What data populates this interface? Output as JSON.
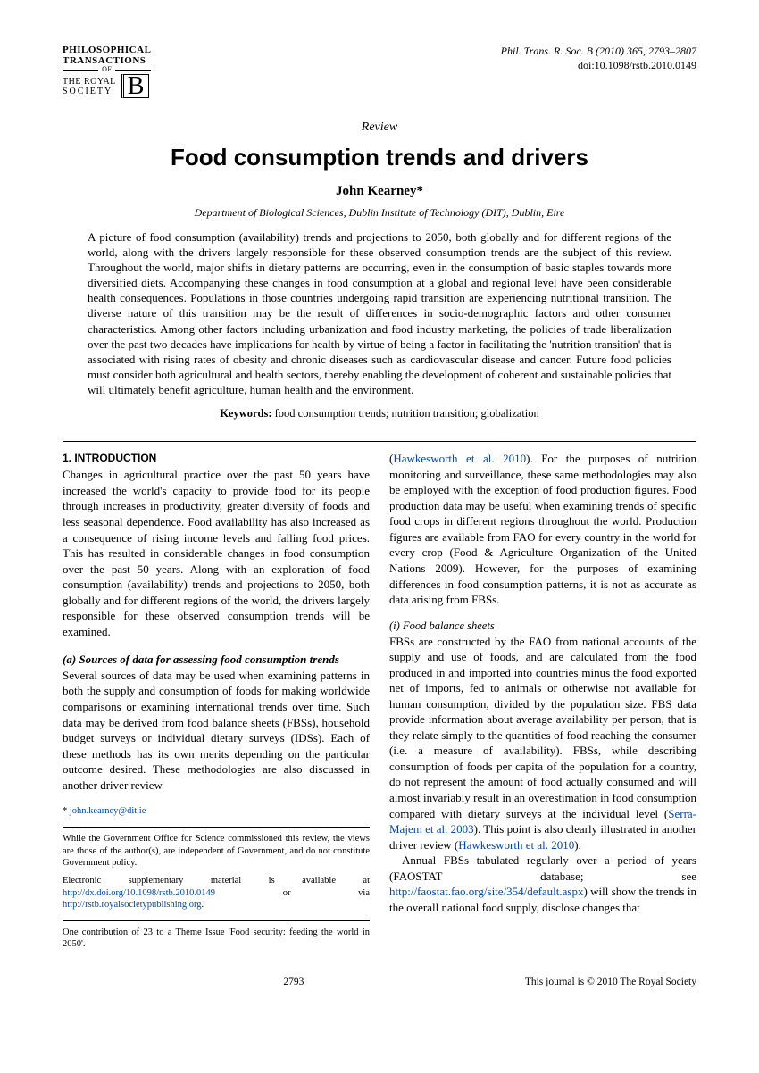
{
  "header": {
    "logo": {
      "line1": "PHILOSOPHICAL",
      "line2": "TRANSACTIONS",
      "of": "OF",
      "royal": "THE ROYAL",
      "society": "SOCIETY",
      "b": "B"
    },
    "citation": "Phil. Trans. R. Soc. B (2010) 365, 2793–2807",
    "doi": "doi:10.1098/rstb.2010.0149"
  },
  "review_label": "Review",
  "title": "Food consumption trends and drivers",
  "author": "John Kearney*",
  "affiliation": "Department of Biological Sciences, Dublin Institute of Technology (DIT), Dublin, Eire",
  "abstract": "A picture of food consumption (availability) trends and projections to 2050, both globally and for different regions of the world, along with the drivers largely responsible for these observed consumption trends are the subject of this review. Throughout the world, major shifts in dietary patterns are occurring, even in the consumption of basic staples towards more diversified diets. Accompanying these changes in food consumption at a global and regional level have been considerable health consequences. Populations in those countries undergoing rapid transition are experiencing nutritional transition. The diverse nature of this transition may be the result of differences in socio-demographic factors and other consumer characteristics. Among other factors including urbanization and food industry marketing, the policies of trade liberalization over the past two decades have implications for health by virtue of being a factor in facilitating the 'nutrition transition' that is associated with rising rates of obesity and chronic diseases such as cardiovascular disease and cancer. Future food policies must consider both agricultural and health sectors, thereby enabling the development of coherent and sustainable policies that will ultimately benefit agriculture, human health and the environment.",
  "keywords_label": "Keywords:",
  "keywords": " food consumption trends; nutrition transition; globalization",
  "section1": {
    "heading": "1. INTRODUCTION",
    "p1": "Changes in agricultural practice over the past 50 years have increased the world's capacity to provide food for its people through increases in productivity, greater diversity of foods and less seasonal dependence. Food availability has also increased as a consequence of rising income levels and falling food prices. This has resulted in considerable changes in food consumption over the past 50 years. Along with an exploration of food consumption (availability) trends and projections to 2050, both globally and for different regions of the world, the drivers largely responsible for these observed consumption trends will be examined."
  },
  "subsection_a": {
    "label": "(a)",
    "title": " Sources of data for assessing food consumption trends",
    "p1": "Several sources of data may be used when examining patterns in both the supply and consumption of foods for making worldwide comparisons or examining international trends over time. Such data may be derived from food balance sheets (FBSs), household budget surveys or individual dietary surveys (IDSs). Each of these methods has its own merits depending on the particular outcome desired. These methodologies are also discussed in another driver review ",
    "cite1_open": "(",
    "cite1": "Hawkesworth et al. 2010",
    "p2_after_cite": "). For the purposes of nutrition monitoring and surveillance, these same methodologies may also be employed with the exception of food production figures. Food production data may be useful when examining trends of specific food crops in different regions throughout the world. Production figures are available from FAO for every country in the world for every crop (Food & Agriculture Organization of the United Nations 2009). However, for the purposes of examining differences in food consumption patterns, it is not as accurate as data arising from FBSs."
  },
  "subsub_i": {
    "label": "(i) ",
    "title": "Food balance sheets",
    "p1": "FBSs are constructed by the FAO from national accounts of the supply and use of foods, and are calculated from the food produced in and imported into countries minus the food exported net of imports, fed to animals or otherwise not available for human consumption, divided by the population size. FBS data provide information about average availability per person, that is they relate simply to the quantities of food reaching the consumer (i.e. a measure of availability). FBSs, while describing consumption of foods per capita of the population for a country, do not represent the amount of food actually consumed and will almost invariably result in an overestimation in food consumption compared with dietary surveys at the individual level (",
    "cite2": "Serra-Majem et al. 2003",
    "p1b": "). This point is also clearly illustrated in another driver review (",
    "cite3": "Hawkesworth et al. 2010",
    "p1c": ").",
    "p2a": "Annual FBSs tabulated regularly over a period of years (FAOSTAT database; see ",
    "link1": "http://faostat.fao.org/site/354/default.aspx",
    "p2b": ") will show the trends in the overall national food supply, disclose changes that"
  },
  "footnotes": {
    "email_star": "* ",
    "email": "john.kearney@dit.ie",
    "f1": "While the Government Office for Science commissioned this review, the views are those of the author(s), are independent of Government, and do not constitute Government policy.",
    "f2a": "Electronic supplementary material is available at ",
    "f2link1": "http://dx.doi.org/10.1098/rstb.2010.0149",
    "f2b": " or via ",
    "f2link2": "http://rstb.royalsocietypublishing.org",
    "f2c": ".",
    "f3": "One contribution of 23 to a Theme Issue 'Food security: feeding the world in 2050'."
  },
  "footer": {
    "page": "2793",
    "copyright": "This journal is © 2010 The Royal Society"
  }
}
